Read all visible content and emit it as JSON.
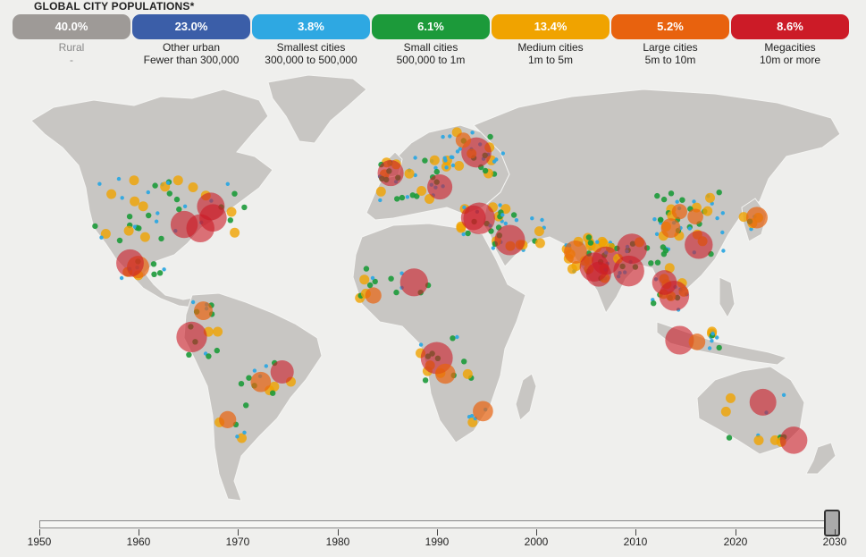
{
  "title": "GLOBAL CITY POPULATIONS*",
  "legend": [
    {
      "pct": "40.0%",
      "name": "Rural",
      "sub": "-",
      "color": "#9e9a97",
      "muted": true
    },
    {
      "pct": "23.0%",
      "name": "Other urban",
      "sub": "Fewer than 300,000",
      "color": "#3b5ea8"
    },
    {
      "pct": "3.8%",
      "name": "Smallest cities",
      "sub": "300,000 to 500,000",
      "color": "#2ea8e2"
    },
    {
      "pct": "6.1%",
      "name": "Small cities",
      "sub": "500,000 to 1m",
      "color": "#1c9a3a"
    },
    {
      "pct": "13.4%",
      "name": "Medium cities",
      "sub": "1m to 5m",
      "color": "#f0a300"
    },
    {
      "pct": "5.2%",
      "name": "Large cities",
      "sub": "5m to 10m",
      "color": "#e8620e"
    },
    {
      "pct": "8.6%",
      "name": "Megacities",
      "sub": "10m or more",
      "color": "#cc1b27"
    }
  ],
  "timeline": {
    "years": [
      "1950",
      "1960",
      "1970",
      "1980",
      "1990",
      "2000",
      "2010",
      "2020",
      "2030"
    ],
    "selected_year": "2030"
  },
  "colors": {
    "land": "#c8c6c3",
    "border": "#f4f4f2",
    "background": "#efefed"
  }
}
